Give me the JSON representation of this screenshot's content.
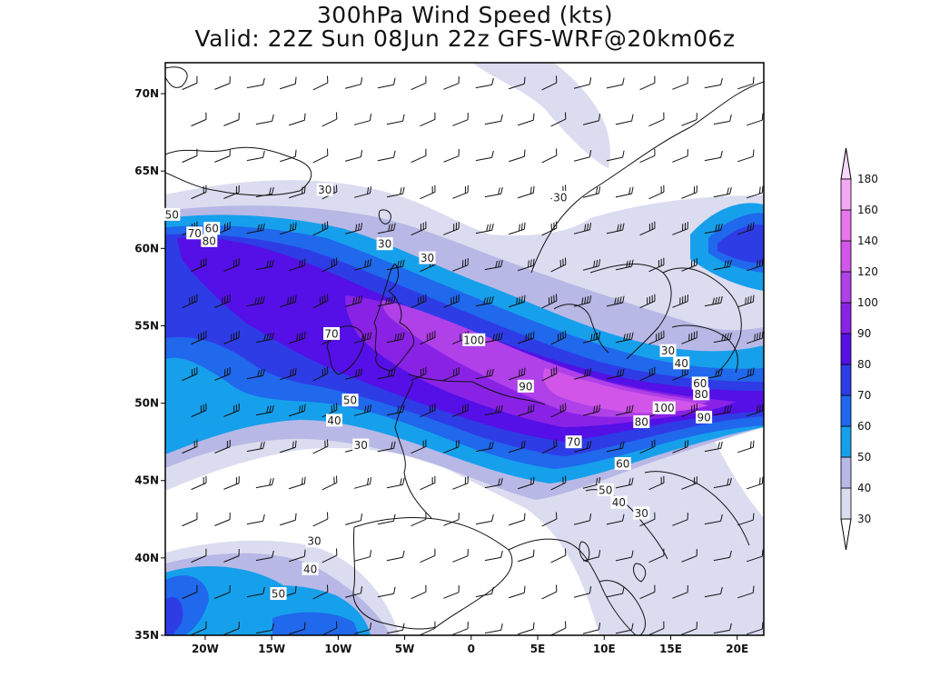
{
  "title": "300hPa Wind Speed (kts)",
  "subtitle": "Valid: 22Z Sun 08Jun 22z GFS-WRF@20km06z",
  "map": {
    "lon_range": [
      -23,
      22
    ],
    "lat_range": [
      35,
      72
    ],
    "lat_ticks": [
      {
        "value": 70,
        "label": "70N"
      },
      {
        "value": 65,
        "label": "65N"
      },
      {
        "value": 60,
        "label": "60N"
      },
      {
        "value": 55,
        "label": "55N"
      },
      {
        "value": 50,
        "label": "50N"
      },
      {
        "value": 45,
        "label": "45N"
      },
      {
        "value": 40,
        "label": "40N"
      },
      {
        "value": 35,
        "label": "35N"
      }
    ],
    "lon_ticks": [
      {
        "value": -20,
        "label": "20W"
      },
      {
        "value": -15,
        "label": "15W"
      },
      {
        "value": -10,
        "label": "10W"
      },
      {
        "value": -5,
        "label": "5W"
      },
      {
        "value": 0,
        "label": "0"
      },
      {
        "value": 5,
        "label": "5E"
      },
      {
        "value": 10,
        "label": "10E"
      },
      {
        "value": 15,
        "label": "15E"
      },
      {
        "value": 20,
        "label": "20E"
      }
    ],
    "contour_labels": [
      {
        "text": "30",
        "lon": -11,
        "lat": 63.8
      },
      {
        "text": "30",
        "lon": -6.5,
        "lat": 60.3
      },
      {
        "text": "30",
        "lon": -3.3,
        "lat": 59.4
      },
      {
        "text": "30",
        "lon": 6.7,
        "lat": 63.3
      },
      {
        "text": "50",
        "lon": -22.5,
        "lat": 62.2
      },
      {
        "text": "60",
        "lon": -19.5,
        "lat": 61.3
      },
      {
        "text": "70",
        "lon": -20.8,
        "lat": 61
      },
      {
        "text": "80",
        "lon": -19.7,
        "lat": 60.5
      },
      {
        "text": "70",
        "lon": -10.5,
        "lat": 54.5
      },
      {
        "text": "100",
        "lon": 0.2,
        "lat": 54.1
      },
      {
        "text": "90",
        "lon": 4.1,
        "lat": 51.1
      },
      {
        "text": "50",
        "lon": -9.1,
        "lat": 50.2
      },
      {
        "text": "40",
        "lon": -10.3,
        "lat": 48.9
      },
      {
        "text": "30",
        "lon": -8.3,
        "lat": 47.3
      },
      {
        "text": "30",
        "lon": 14.8,
        "lat": 53.4
      },
      {
        "text": "40",
        "lon": 15.8,
        "lat": 52.6
      },
      {
        "text": "60",
        "lon": 17.2,
        "lat": 51.3
      },
      {
        "text": "80",
        "lon": 17.3,
        "lat": 50.6
      },
      {
        "text": "100",
        "lon": 14.5,
        "lat": 49.7
      },
      {
        "text": "90",
        "lon": 17.5,
        "lat": 49.1
      },
      {
        "text": "80",
        "lon": 12.8,
        "lat": 48.8
      },
      {
        "text": "70",
        "lon": 7.7,
        "lat": 47.5
      },
      {
        "text": "60",
        "lon": 11.4,
        "lat": 46.1
      },
      {
        "text": "50",
        "lon": 10.1,
        "lat": 44.4
      },
      {
        "text": "40",
        "lon": 11.1,
        "lat": 43.6
      },
      {
        "text": "30",
        "lon": 12.8,
        "lat": 42.9
      },
      {
        "text": "30",
        "lon": -11.8,
        "lat": 41.1
      },
      {
        "text": "40",
        "lon": -12.1,
        "lat": 39.3
      },
      {
        "text": "50",
        "lon": -14.5,
        "lat": 37.7
      }
    ]
  },
  "colorbar": {
    "levels": [
      "30",
      "40",
      "50",
      "60",
      "70",
      "80",
      "90",
      "100",
      "120",
      "140",
      "160",
      "180"
    ],
    "colors": [
      "#dcdcf0",
      "#b8b8e6",
      "#16a0ec",
      "#2068ec",
      "#2e3ce6",
      "#5410e6",
      "#8a22e6",
      "#b040e8",
      "#d255ea",
      "#e874ee",
      "#f4a8f2",
      "#fad8fa"
    ]
  },
  "colors": {
    "c30": "#dcdcf0",
    "c40": "#b8b8e6",
    "c50": "#16a0ec",
    "c60": "#2068ec",
    "c70": "#2e3ce6",
    "c80": "#5410e6",
    "c90": "#8a22e6",
    "c100": "#b040e8",
    "c120": "#d255ea",
    "c140": "#e874ee"
  }
}
